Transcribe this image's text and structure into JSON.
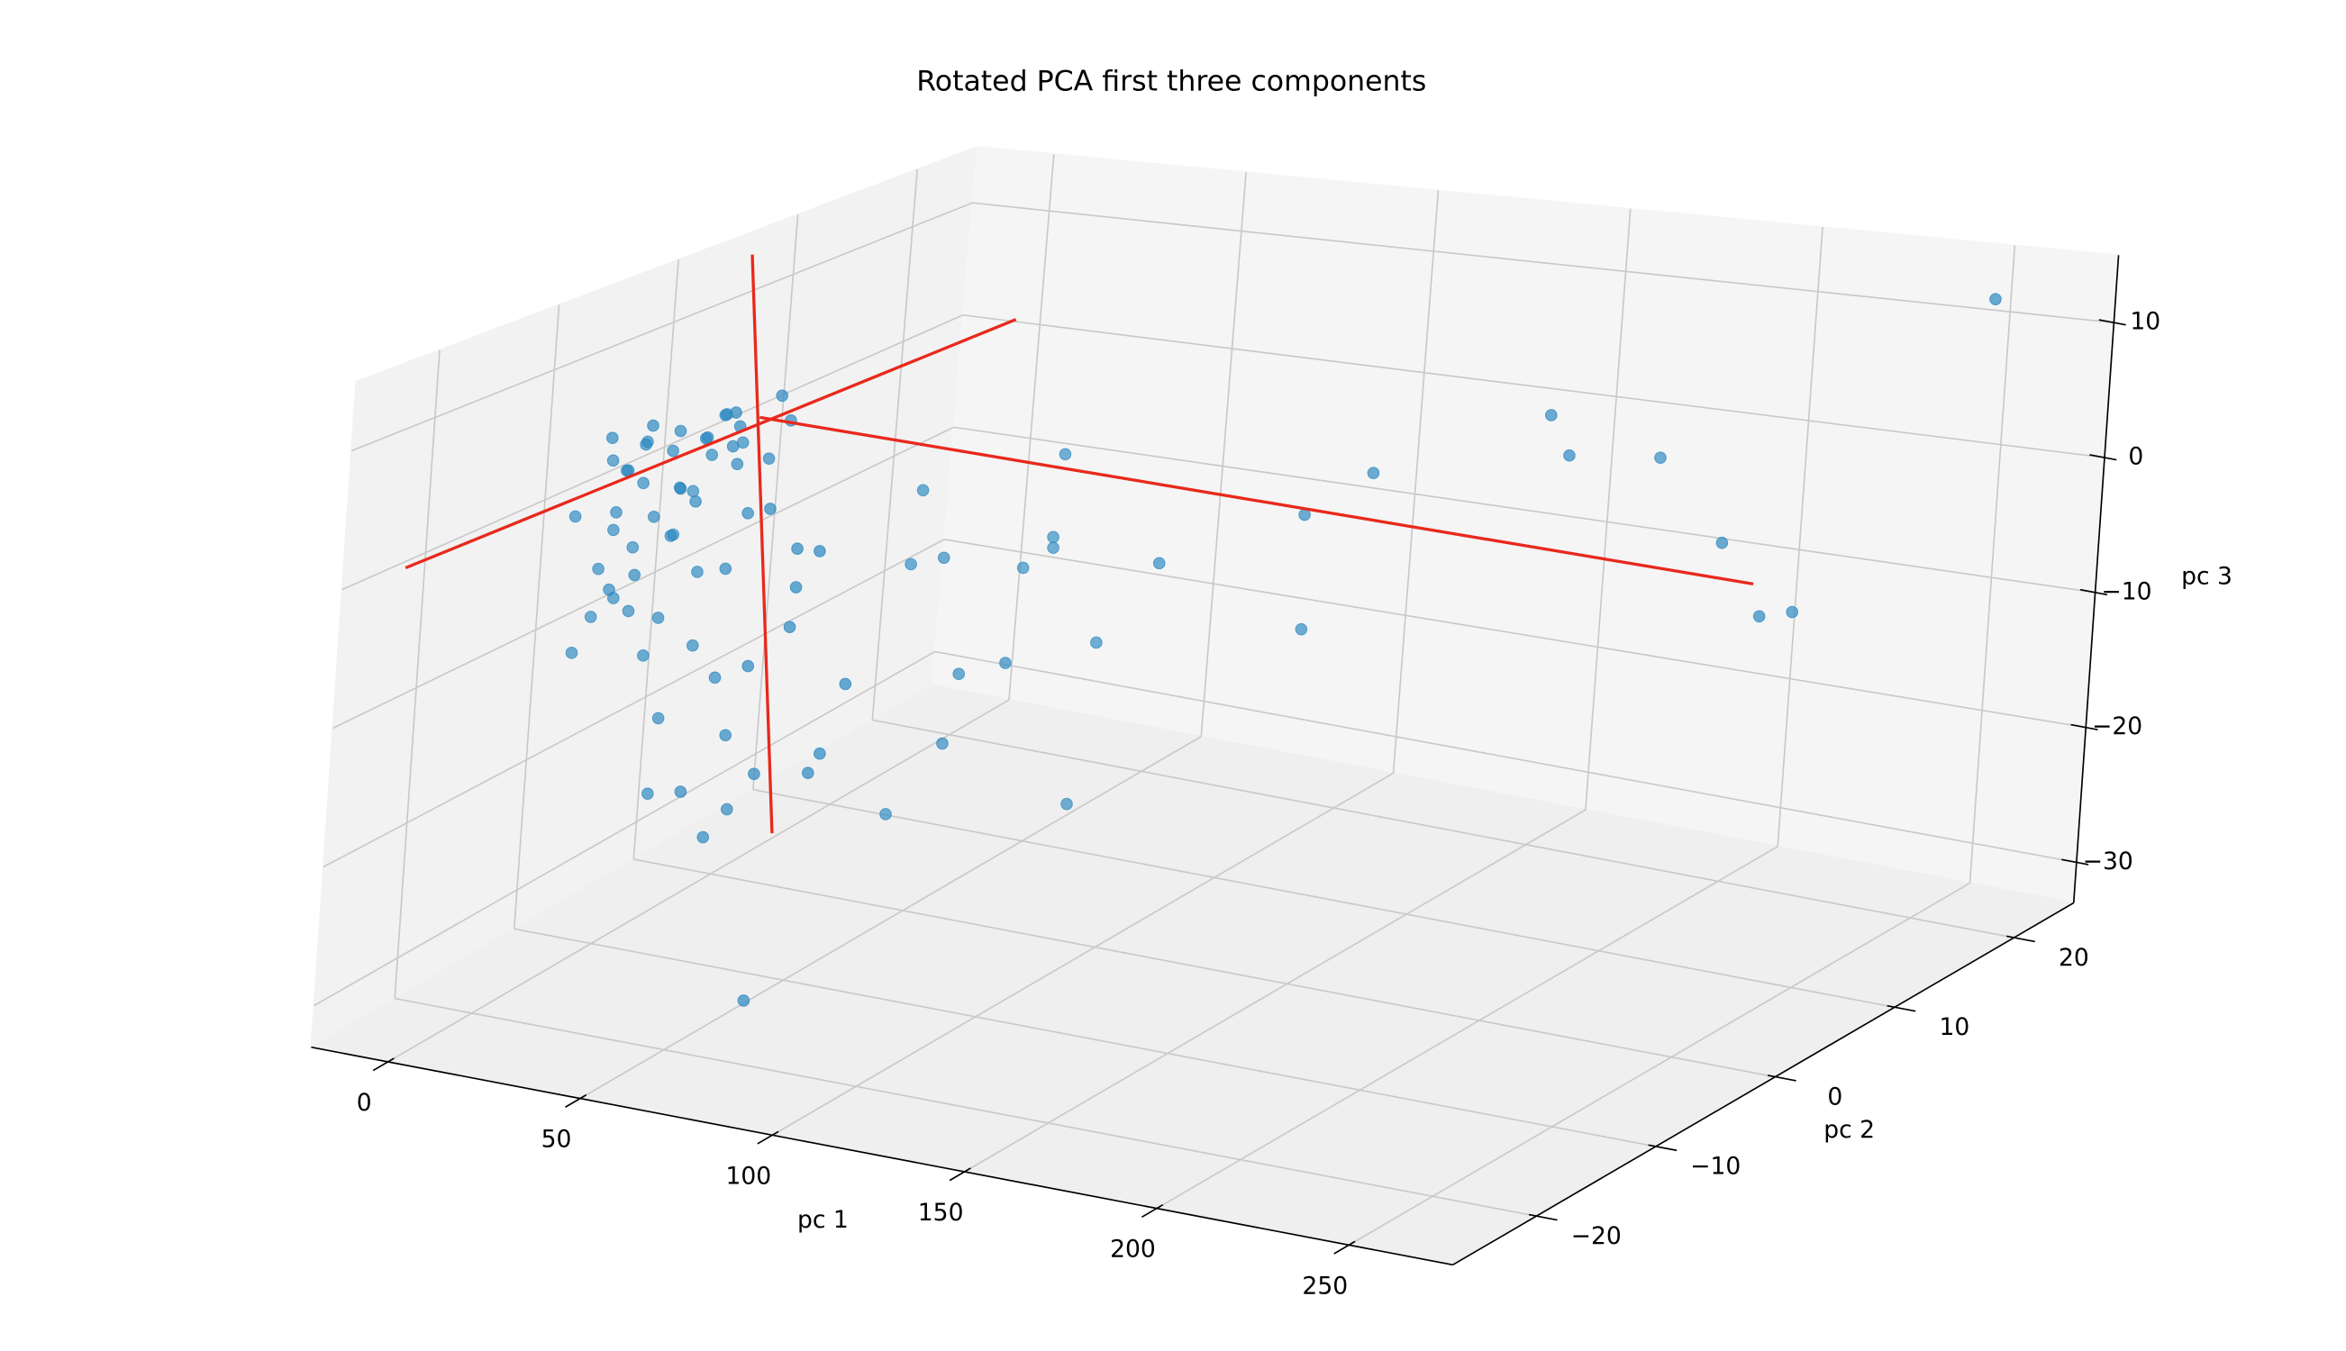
{
  "chart_data": {
    "type": "scatter3d",
    "title": "Rotated PCA first three components",
    "xlabel": "pc 1",
    "ylabel": "pc 2",
    "zlabel": "pc 3",
    "xlim": [
      -20,
      277
    ],
    "ylim": [
      -27,
      25
    ],
    "zlim": [
      -33,
      15
    ],
    "xticks": [
      0,
      50,
      100,
      150,
      200,
      250
    ],
    "yticks": [
      {
        "value": -20,
        "label": "−20"
      },
      {
        "value": -10,
        "label": "−10"
      },
      0,
      10,
      20
    ],
    "zticks": [
      {
        "value": -30,
        "label": "−30"
      },
      {
        "value": -20,
        "label": "−20"
      },
      {
        "value": -10,
        "label": "−10"
      },
      0,
      10
    ],
    "grid": true,
    "series": [
      {
        "color": "#2b88c1",
        "x": [
          11.8,
          17.4,
          23.0,
          28.7,
          34.4,
          40.0,
          45.7,
          51.3,
          15.9,
          21.5,
          27.1,
          32.8,
          38.4,
          44.0,
          20.0,
          31.2,
          42.5,
          16.5,
          29.7,
          40.9,
          13.1,
          26.3,
          33.8,
          15.4,
          28.6,
          9.9,
          25.3,
          14.3,
          29.5,
          8.8,
          26.2,
          7.5,
          23.0,
          38.9,
          28.0,
          45.6,
          56.6,
          26.6,
          44.3,
          41.6,
          54.9,
          53.2,
          57.9,
          66.7,
          64.2,
          75.6,
          70.2,
          57.3,
          42.7,
          47.5,
          38.0,
          67.5,
          50.2,
          32.6,
          18.4,
          20.2,
          30.5,
          36.0,
          48.0,
          24.0,
          12.0,
          35.5,
          46.0,
          22.0,
          19.0,
          261,
          178.3,
          183.7,
          192.3,
          209.7,
          220.6,
          220.1,
          148.4,
          131.4,
          132.6,
          109.7,
          83.5,
          81.9,
          82.1,
          74.7,
          94.9,
          90.2,
          86.7,
          74.9,
          71.9,
          58.6,
          69.0,
          60.6,
          62.4
        ],
        "y": [
          -15,
          -14,
          -16,
          -15,
          -13,
          -15,
          -16,
          -14,
          -15,
          -17,
          -15,
          -14,
          -16,
          -15,
          -15,
          -13,
          -15,
          -16,
          -15,
          -14,
          -15,
          -16,
          -15,
          -14,
          -15,
          -15,
          -17,
          -15,
          -13,
          -15,
          -15,
          -16,
          -15,
          -14,
          -15,
          -15,
          -16,
          -15,
          -14,
          -15,
          -15,
          -15,
          -14,
          -15,
          -16,
          -15,
          -15,
          -14,
          -15,
          -15,
          -16,
          -15,
          -15,
          -14,
          -15,
          -18,
          -18,
          -12,
          -12,
          -12,
          -18,
          -17,
          -13,
          -13,
          -17,
          20,
          10,
          10,
          15,
          15,
          15,
          18,
          5,
          5,
          5,
          0,
          0,
          0,
          0,
          0,
          0,
          0,
          -5,
          -5,
          -5,
          -5,
          -5,
          -5,
          -5
        ],
        "z": [
          6.0,
          7.2,
          7.9,
          8.7,
          9.4,
          10.2,
          10.9,
          11.6,
          5.4,
          6.3,
          7.2,
          8.0,
          8.8,
          9.5,
          4.6,
          6.3,
          8.0,
          2.7,
          4.5,
          6.3,
          0.9,
          2.7,
          3.7,
          -0.7,
          1.1,
          -2.1,
          -1.2,
          -4.1,
          -2.4,
          -5.7,
          -5.1,
          -8.0,
          -8.0,
          -9.4,
          -12.4,
          -12.9,
          -14.8,
          -18.0,
          -18.8,
          -20.5,
          -31.7,
          3.8,
          0.7,
          1.2,
          -1.1,
          -8.0,
          -13.2,
          -5.0,
          -0.9,
          3.3,
          -16.9,
          -14.7,
          -7.7,
          -7.3,
          -4.9,
          9.0,
          10.2,
          7.0,
          9.0,
          3.0,
          3.0,
          5.5,
          6.5,
          0.0,
          -2.5,
          13,
          5.5,
          2.7,
          0.9,
          -4.8,
          -9.8,
          -10.8,
          2.1,
          -1.6,
          -10.1,
          -4.0,
          3.2,
          -3.1,
          -3.9,
          -5.7,
          -10.5,
          -22.8,
          -10.2,
          -11.5,
          -16.8,
          -22.7,
          -3.1,
          -3.9,
          1.7
        ]
      }
    ],
    "lines": [
      {
        "color": "#e8291c",
        "x": [
          -4.0,
          77.3
        ],
        "y": [
          -27,
          -3
        ],
        "z": [
          2.1,
          14.2
        ]
      },
      {
        "color": "#e8291c",
        "x": [
          48.9,
          218.5
        ],
        "y": [
          -15,
          15
        ],
        "z": [
          10.3,
          -7.5
        ]
      },
      {
        "color": "#e8291c",
        "x": [
          44.1,
          59.3
        ],
        "y": [
          -15,
          -15
        ],
        "z": [
          22.0,
          -19.4
        ]
      }
    ]
  }
}
